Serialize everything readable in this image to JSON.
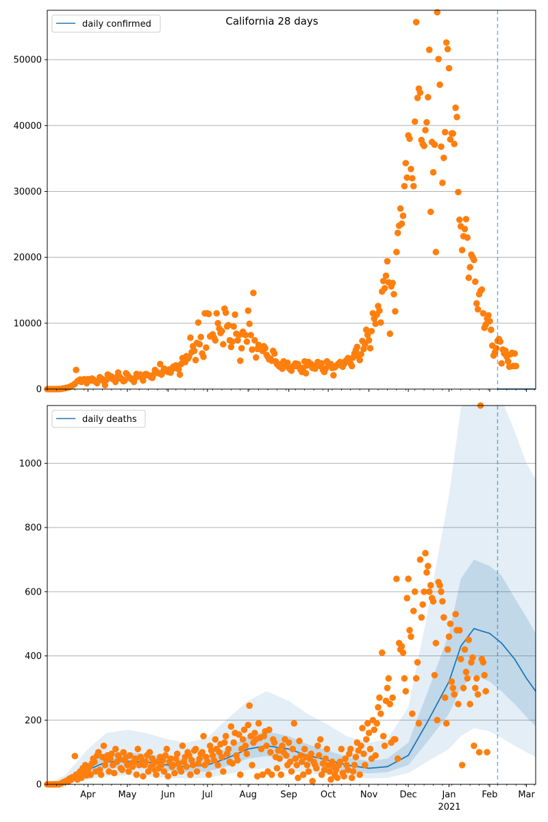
{
  "figure": {
    "suptitle": "California 28 days"
  },
  "chart_data": [
    {
      "type": "scatter",
      "legend": {
        "label": "daily confirmed",
        "placement": "top-left"
      },
      "grid": "y",
      "ylim": [
        0,
        57500
      ],
      "yticks": [
        0,
        10000,
        20000,
        30000,
        40000,
        50000
      ],
      "xlim": [
        "2020-03-01",
        "2021-03-08"
      ],
      "x_month_ticks": [
        "2020-04-01",
        "2020-05-01",
        "2020-06-01",
        "2020-07-01",
        "2020-08-01",
        "2020-09-01",
        "2020-10-01",
        "2020-11-01",
        "2020-12-01",
        "2021-01-01",
        "2021-02-01",
        "2021-03-01"
      ],
      "vline_date": "2021-02-07",
      "line_color": "#1f77b4",
      "point_color": "#ff7f0e",
      "series": [
        {
          "name": "observed",
          "start_date": "2020-03-01",
          "values": [
            0,
            0,
            0,
            0,
            0,
            0,
            0,
            0,
            0,
            10,
            20,
            50,
            80,
            120,
            160,
            200,
            260,
            320,
            420,
            520,
            650,
            800,
            2900,
            1200,
            1300,
            1450,
            1100,
            1350,
            1500,
            1200,
            900,
            1500,
            1400,
            1300,
            1600,
            1450,
            1200,
            1100,
            900,
            1300,
            1800,
            1600,
            1500,
            1200,
            600,
            1400,
            2200,
            2100,
            1700,
            1900,
            1500,
            1400,
            1100,
            1800,
            2500,
            1900,
            1600,
            1500,
            1200,
            1300,
            2400,
            2200,
            1900,
            1700,
            1500,
            1400,
            1100,
            1700,
            2300,
            2100,
            1900,
            2200,
            1800,
            1300,
            2000,
            2300,
            2200,
            2100,
            2000,
            1800,
            1700,
            2200,
            2900,
            2600,
            2500,
            2400,
            3800,
            2200,
            2600,
            3100,
            2900,
            2800,
            2600,
            3000,
            2500,
            3000,
            3400,
            3200,
            3600,
            3400,
            3000,
            2200,
            3800,
            4700,
            4300,
            4100,
            5000,
            4600,
            4900,
            7800,
            5600,
            6500,
            5800,
            4400,
            7000,
            10100,
            6800,
            7900,
            5400,
            4900,
            11500,
            6300,
            11500,
            11400,
            8000,
            8100,
            8300,
            7800,
            7400,
            11500,
            10000,
            9200,
            8500,
            8800,
            6800,
            12200,
            11600,
            9500,
            9700,
            7400,
            6400,
            7200,
            9500,
            11300,
            8400,
            7400,
            8200,
            4300,
            6200,
            8700,
            8300,
            8200,
            7200,
            11900,
            9900,
            8200,
            6000,
            14600,
            7400,
            4800,
            6100,
            6700,
            6400,
            6000,
            5800,
            6500,
            6200,
            5200,
            4900,
            4500,
            4600,
            4300,
            5800,
            5400,
            4200,
            3800,
            3600,
            3400,
            3800,
            3100,
            4200,
            4000,
            3700,
            4000,
            3200,
            3000,
            2800,
            3400,
            3600,
            3900,
            3500,
            3800,
            3300,
            2900,
            2600,
            3200,
            4200,
            2400,
            3600,
            4100,
            3900,
            3800,
            3200,
            3400,
            3100,
            3600,
            4100,
            3800,
            3500,
            3900,
            2900,
            2600,
            3100,
            4200,
            3900,
            3600,
            3800,
            3200,
            2100,
            3300,
            3500,
            3700,
            3900,
            4100,
            3600,
            3400,
            3800,
            4200,
            4400,
            4700,
            4300,
            3900,
            3500,
            4800,
            5400,
            5900,
            6400,
            5000,
            4400,
            5300,
            7300,
            6100,
            6800,
            9000,
            8200,
            7400,
            6200,
            8800,
            11500,
            10700,
            9900,
            11300,
            12600,
            11900,
            10100,
            14800,
            16400,
            15300,
            17200,
            19400,
            16200,
            8400,
            15600,
            16100,
            14400,
            11800,
            20800,
            23700,
            24800,
            27400,
            25100,
            26300,
            30800,
            34300,
            32100,
            38500,
            38000,
            33400,
            32000,
            30800,
            40600,
            55700,
            44200,
            45600,
            45000,
            37800,
            37200,
            36900,
            39300,
            40500,
            44300,
            51500,
            26900,
            37500,
            32900,
            37100,
            20800,
            57200,
            50100,
            46200,
            36800,
            31300,
            35100,
            39000,
            52600,
            51600,
            48700,
            37900,
            38800,
            38800,
            37200,
            42700,
            41300,
            29900,
            25700,
            24700,
            21100,
            23200,
            24300,
            25800,
            23000,
            16900,
            18500,
            20400,
            20000,
            19600,
            16300,
            13000,
            12100,
            14400,
            14900,
            15100,
            11500,
            9300,
            9800,
            10700,
            11200,
            10300,
            9000,
            6600,
            5100,
            5600,
            6200,
            7300,
            7600,
            7200,
            3900,
            6000,
            5400,
            5800,
            4900,
            4200,
            3400,
            5300,
            5500,
            3500,
            5400,
            3500
          ]
        },
        {
          "name": "fit",
          "start_date": "2021-02-07",
          "values": [
            0,
            0,
            0,
            0,
            0,
            0,
            0,
            0,
            0,
            0,
            0,
            0,
            0,
            0,
            0,
            0,
            0,
            0,
            0,
            0,
            0,
            0,
            0,
            0,
            0,
            0,
            0,
            0,
            0,
            0
          ]
        }
      ]
    },
    {
      "type": "scatter",
      "legend": {
        "label": "daily deaths",
        "placement": "top-left"
      },
      "grid": "y",
      "ylim": [
        0,
        1180
      ],
      "yticks": [
        0,
        200,
        400,
        600,
        800,
        1000
      ],
      "xlim": [
        "2020-03-01",
        "2021-03-08"
      ],
      "x_month_labels": [
        "Apr",
        "May",
        "Jun",
        "Jul",
        "Aug",
        "Sep",
        "Oct",
        "Nov",
        "Dec",
        "Jan",
        "Feb",
        "Mar"
      ],
      "x_year_label": "2021",
      "vline_date": "2021-02-07",
      "line_color": "#1f77b4",
      "band_color": "#1f77b4",
      "point_color": "#ff7f0e",
      "median_curve": {
        "dates": [
          "2020-03-01",
          "2020-03-15",
          "2020-04-01",
          "2020-04-15",
          "2020-05-01",
          "2020-05-15",
          "2020-06-01",
          "2020-06-15",
          "2020-07-01",
          "2020-07-15",
          "2020-08-01",
          "2020-08-15",
          "2020-09-01",
          "2020-09-15",
          "2020-10-01",
          "2020-10-15",
          "2020-11-01",
          "2020-11-15",
          "2020-12-01",
          "2020-12-15",
          "2021-01-01",
          "2021-01-10",
          "2021-01-20",
          "2021-02-01",
          "2021-02-10",
          "2021-02-20",
          "2021-03-01",
          "2021-03-08"
        ],
        "median": [
          0,
          10,
          45,
          70,
          72,
          70,
          60,
          55,
          60,
          80,
          110,
          120,
          110,
          90,
          75,
          60,
          50,
          55,
          90,
          190,
          320,
          430,
          485,
          470,
          440,
          390,
          330,
          290
        ],
        "q25": [
          0,
          6,
          30,
          50,
          52,
          50,
          42,
          38,
          40,
          55,
          80,
          88,
          78,
          62,
          52,
          40,
          34,
          38,
          60,
          130,
          220,
          300,
          340,
          320,
          290,
          250,
          210,
          180
        ],
        "q75": [
          0,
          16,
          65,
          100,
          100,
          95,
          85,
          78,
          85,
          110,
          150,
          165,
          150,
          125,
          105,
          85,
          72,
          80,
          130,
          280,
          470,
          640,
          700,
          680,
          650,
          580,
          520,
          470
        ],
        "q05": [
          0,
          2,
          15,
          25,
          28,
          25,
          20,
          18,
          20,
          30,
          45,
          50,
          42,
          35,
          28,
          22,
          18,
          20,
          35,
          70,
          110,
          150,
          175,
          165,
          145,
          120,
          100,
          85
        ],
        "q95": [
          0,
          30,
          110,
          160,
          170,
          160,
          140,
          130,
          145,
          200,
          260,
          290,
          260,
          220,
          185,
          150,
          130,
          140,
          240,
          520,
          900,
          1170,
          1250,
          1250,
          1200,
          1100,
          1000,
          950
        ]
      },
      "points": {
        "start_date": "2020-03-01",
        "values": [
          0,
          0,
          0,
          0,
          0,
          0,
          0,
          0,
          0,
          0,
          2,
          4,
          6,
          8,
          10,
          12,
          8,
          18,
          14,
          22,
          20,
          88,
          30,
          15,
          25,
          40,
          20,
          50,
          35,
          60,
          28,
          45,
          55,
          30,
          65,
          80,
          70,
          40,
          90,
          100,
          45,
          30,
          85,
          120,
          60,
          75,
          90,
          40,
          80,
          95,
          60,
          35,
          110,
          70,
          90,
          80,
          50,
          45,
          100,
          75,
          85,
          60,
          40,
          90,
          65,
          55,
          70,
          80,
          30,
          110,
          60,
          85,
          75,
          25,
          60,
          70,
          90,
          40,
          100,
          55,
          80,
          65,
          45,
          30,
          70,
          50,
          85,
          60,
          75,
          40,
          90,
          110,
          25,
          70,
          80,
          55,
          60,
          35,
          80,
          95,
          65,
          50,
          40,
          120,
          70,
          85,
          55,
          100,
          90,
          30,
          75,
          60,
          105,
          110,
          40,
          65,
          80,
          95,
          100,
          150,
          60,
          85,
          70,
          30,
          120,
          105,
          90,
          75,
          140,
          110,
          60,
          100,
          125,
          85,
          40,
          130,
          150,
          95,
          110,
          70,
          180,
          65,
          130,
          160,
          90,
          75,
          155,
          30,
          110,
          140,
          170,
          120,
          95,
          185,
          245,
          150,
          60,
          130,
          160,
          140,
          25,
          190,
          145,
          110,
          30,
          150,
          165,
          120,
          40,
          170,
          100,
          30,
          140,
          130,
          85,
          50,
          105,
          80,
          30,
          120,
          100,
          140,
          90,
          60,
          130,
          70,
          40,
          110,
          190,
          80,
          60,
          20,
          135,
          90,
          70,
          30,
          110,
          85,
          60,
          40,
          80,
          95,
          10,
          70,
          60,
          50,
          120,
          90,
          140,
          30,
          65,
          45,
          80,
          110,
          60,
          40,
          15,
          70,
          55,
          30,
          45,
          20,
          60,
          70,
          110,
          35,
          25,
          80,
          60,
          45,
          95,
          110,
          20,
          40,
          60,
          85,
          130,
          105,
          30,
          120,
          175,
          95,
          60,
          140,
          190,
          160,
          110,
          80,
          200,
          170,
          90,
          190,
          240,
          270,
          220,
          410,
          150,
          120,
          260,
          300,
          330,
          250,
          130,
          270,
          140,
          140,
          640,
          80,
          440,
          420,
          430,
          410,
          330,
          290,
          580,
          640,
          480,
          460,
          220,
          540,
          600,
          330,
          380,
          190,
          700,
          520,
          560,
          600,
          720,
          660,
          680,
          600,
          620,
          580,
          570,
          340,
          440,
          200,
          630,
          620,
          600,
          570,
          520,
          270,
          190,
          420,
          460,
          500,
          320,
          300,
          280,
          530,
          480,
          250,
          480,
          390,
          60,
          300,
          420,
          350,
          330,
          450,
          250,
          380,
          395,
          120,
          300,
          330,
          280,
          100,
          1180,
          390,
          380,
          340,
          290,
          100
        ]
      }
    }
  ]
}
